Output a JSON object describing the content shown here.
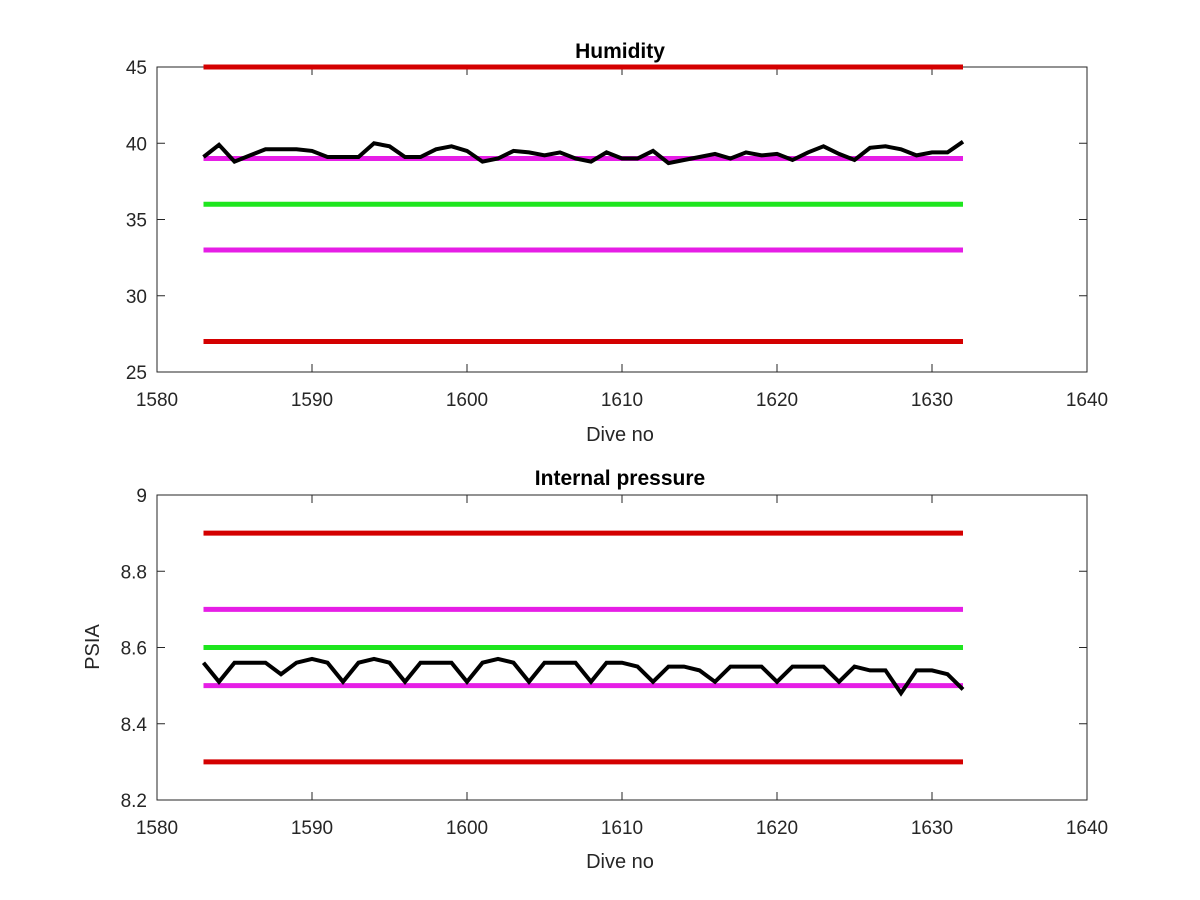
{
  "chart_data": [
    {
      "type": "line",
      "title": "Humidity",
      "xlabel": "Dive no",
      "ylabel": "",
      "xlim": [
        1580,
        1640
      ],
      "ylim": [
        25,
        45
      ],
      "xticks": [
        "1580",
        "1590",
        "1600",
        "1610",
        "1620",
        "1630",
        "1640"
      ],
      "yticks": [
        "25",
        "30",
        "35",
        "40",
        "45"
      ],
      "grid": false,
      "threshold_lines": [
        {
          "y": 45,
          "color": "#d40000",
          "x": [
            1583,
            1632
          ]
        },
        {
          "y": 39,
          "color": "#e61ee6",
          "x": [
            1583,
            1632
          ]
        },
        {
          "y": 36,
          "color": "#1ee61e",
          "x": [
            1583,
            1632
          ]
        },
        {
          "y": 33,
          "color": "#e61ee6",
          "x": [
            1583,
            1632
          ]
        },
        {
          "y": 27,
          "color": "#d40000",
          "x": [
            1583,
            1632
          ]
        }
      ],
      "series": [
        {
          "color": "#000000",
          "x": [
            1583,
            1584,
            1585,
            1586,
            1587,
            1588,
            1589,
            1590,
            1591,
            1592,
            1593,
            1594,
            1595,
            1596,
            1597,
            1598,
            1599,
            1600,
            1601,
            1602,
            1603,
            1604,
            1605,
            1606,
            1607,
            1608,
            1609,
            1610,
            1611,
            1612,
            1613,
            1614,
            1615,
            1616,
            1617,
            1618,
            1619,
            1620,
            1621,
            1622,
            1623,
            1624,
            1625,
            1626,
            1627,
            1628,
            1629,
            1630,
            1631,
            1632
          ],
          "values": [
            39.1,
            39.9,
            38.8,
            39.2,
            39.6,
            39.6,
            39.6,
            39.5,
            39.1,
            39.1,
            39.1,
            40.0,
            39.8,
            39.1,
            39.1,
            39.6,
            39.8,
            39.5,
            38.8,
            39.0,
            39.5,
            39.4,
            39.2,
            39.4,
            39.0,
            38.8,
            39.4,
            39.0,
            39.0,
            39.5,
            38.7,
            38.9,
            39.1,
            39.3,
            39.0,
            39.4,
            39.2,
            39.3,
            38.9,
            39.4,
            39.8,
            39.3,
            38.9,
            39.7,
            39.8,
            39.6,
            39.2,
            39.4,
            39.4,
            40.1
          ]
        }
      ]
    },
    {
      "type": "line",
      "title": "Internal pressure",
      "xlabel": "Dive no",
      "ylabel": "PSIA",
      "xlim": [
        1580,
        1640
      ],
      "ylim": [
        8.2,
        9.0
      ],
      "xticks": [
        "1580",
        "1590",
        "1600",
        "1610",
        "1620",
        "1630",
        "1640"
      ],
      "yticks": [
        "8.2",
        "8.4",
        "8.6",
        "8.8",
        "9"
      ],
      "grid": false,
      "threshold_lines": [
        {
          "y": 8.9,
          "color": "#d40000",
          "x": [
            1583,
            1632
          ]
        },
        {
          "y": 8.7,
          "color": "#e61ee6",
          "x": [
            1583,
            1632
          ]
        },
        {
          "y": 8.6,
          "color": "#1ee61e",
          "x": [
            1583,
            1632
          ]
        },
        {
          "y": 8.5,
          "color": "#e61ee6",
          "x": [
            1583,
            1632
          ]
        },
        {
          "y": 8.3,
          "color": "#d40000",
          "x": [
            1583,
            1632
          ]
        }
      ],
      "series": [
        {
          "color": "#000000",
          "x": [
            1583,
            1584,
            1585,
            1586,
            1587,
            1588,
            1589,
            1590,
            1591,
            1592,
            1593,
            1594,
            1595,
            1596,
            1597,
            1598,
            1599,
            1600,
            1601,
            1602,
            1603,
            1604,
            1605,
            1606,
            1607,
            1608,
            1609,
            1610,
            1611,
            1612,
            1613,
            1614,
            1615,
            1616,
            1617,
            1618,
            1619,
            1620,
            1621,
            1622,
            1623,
            1624,
            1625,
            1626,
            1627,
            1628,
            1629,
            1630,
            1631,
            1632
          ],
          "values": [
            8.56,
            8.51,
            8.56,
            8.56,
            8.56,
            8.53,
            8.56,
            8.57,
            8.56,
            8.51,
            8.56,
            8.57,
            8.56,
            8.51,
            8.56,
            8.56,
            8.56,
            8.51,
            8.56,
            8.57,
            8.56,
            8.51,
            8.56,
            8.56,
            8.56,
            8.51,
            8.56,
            8.56,
            8.55,
            8.51,
            8.55,
            8.55,
            8.54,
            8.51,
            8.55,
            8.55,
            8.55,
            8.51,
            8.55,
            8.55,
            8.55,
            8.51,
            8.55,
            8.54,
            8.54,
            8.48,
            8.54,
            8.54,
            8.53,
            8.49
          ]
        }
      ]
    }
  ]
}
